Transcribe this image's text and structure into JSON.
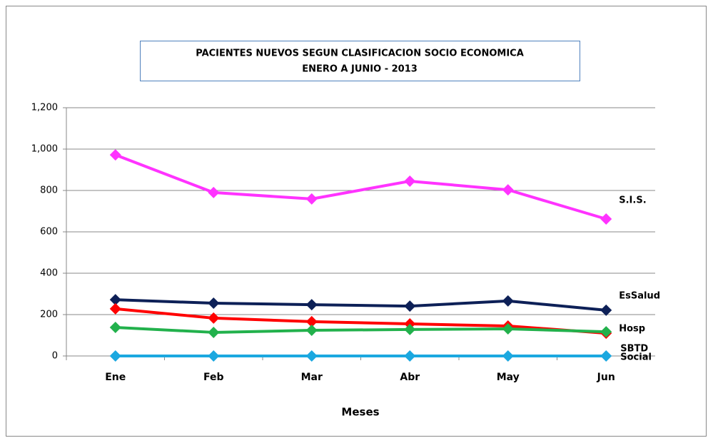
{
  "chart_data": {
    "type": "line",
    "title": [
      "PACIENTES NUEVOS SEGUN CLASIFICACION  SOCIO ECONOMICA",
      "ENERO A JUNIO  - 2013"
    ],
    "x_label": "Meses",
    "categories": [
      "Ene",
      "Feb",
      "Mar",
      "Abr",
      "May",
      "Jun"
    ],
    "series": [
      {
        "name": "S.I.S.",
        "color": "#ff33ff",
        "values": [
          972,
          790,
          759,
          845,
          803,
          662
        ]
      },
      {
        "name": "EsSalud",
        "color": "#0d2057",
        "values": [
          272,
          255,
          248,
          241,
          266,
          221
        ]
      },
      {
        "name": "Hosp",
        "color": "#ff0000",
        "values": [
          228,
          183,
          166,
          155,
          145,
          110
        ]
      },
      {
        "name": "SBTD",
        "color": "#22b14c",
        "values": [
          138,
          114,
          124,
          128,
          131,
          117
        ]
      },
      {
        "name": "Social",
        "color": "#1ba8e0",
        "values": [
          0,
          0,
          0,
          0,
          0,
          0
        ]
      }
    ],
    "ylim": [
      0,
      1200
    ],
    "yticks": [
      0,
      200,
      400,
      600,
      800,
      {
        "value": 1000,
        "label": "1,000"
      },
      {
        "value": 1200,
        "label": "1,200"
      }
    ],
    "grid": true
  }
}
